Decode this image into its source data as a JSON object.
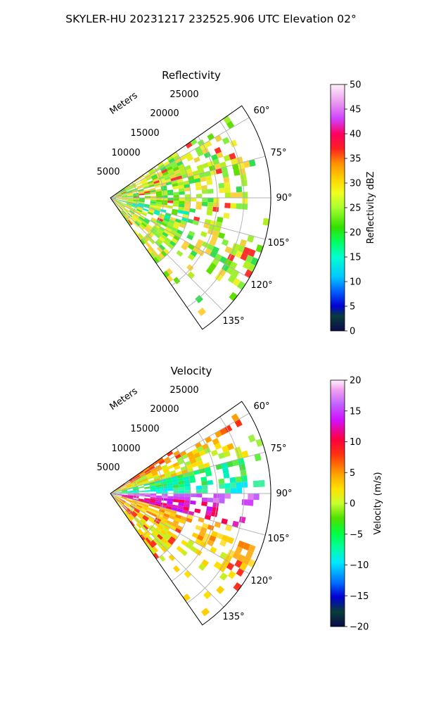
{
  "suptitle": "SKYLER-HU  20231217  232525.906 UTC Elevation 02°",
  "chart_data": [
    {
      "type": "heatmap",
      "title": "Reflectivity",
      "range_label": "Meters",
      "range_ticks": [
        "5000",
        "10000",
        "15000",
        "20000",
        "25000"
      ],
      "azimuth_ticks": [
        "60°",
        "75°",
        "90°",
        "105°",
        "120°",
        "135°"
      ],
      "azimuth_range_deg": [
        55,
        145
      ],
      "range_max_m": 30000,
      "colorbar": {
        "label": "Reflectivity dBZ",
        "ticks": [
          "0",
          "5",
          "10",
          "15",
          "20",
          "25",
          "30",
          "35",
          "40",
          "45",
          "50"
        ],
        "range": [
          0,
          50
        ]
      }
    },
    {
      "type": "heatmap",
      "title": "Velocity",
      "range_label": "Meters",
      "range_ticks": [
        "5000",
        "10000",
        "15000",
        "20000",
        "25000"
      ],
      "azimuth_ticks": [
        "60°",
        "75°",
        "90°",
        "105°",
        "120°",
        "135°"
      ],
      "azimuth_range_deg": [
        55,
        145
      ],
      "range_max_m": 30000,
      "colorbar": {
        "label": "Velocity (m/s)",
        "ticks": [
          "−20",
          "−15",
          "−10",
          "−5",
          "0",
          "5",
          "10",
          "15",
          "20"
        ],
        "range": [
          -20,
          20
        ]
      }
    }
  ]
}
